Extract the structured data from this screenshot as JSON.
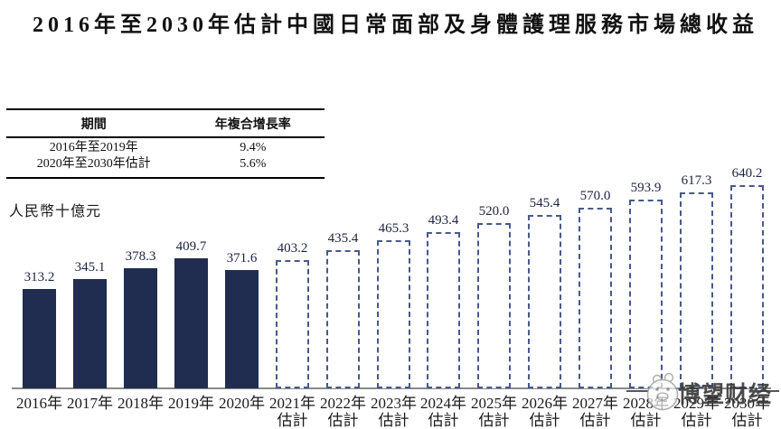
{
  "title": "2016年至2030年估計中國日常面部及身體護理服務市場總收益",
  "cagr_table": {
    "headers": [
      "期間",
      "年複合增長率"
    ],
    "rows": [
      [
        "2016年至2019年",
        "9.4%"
      ],
      [
        "2020年至2030年估計",
        "5.6%"
      ]
    ]
  },
  "watermark": {
    "text": "博望财经",
    "logo": "cat-face-logo"
  },
  "chart_data": {
    "type": "bar",
    "title": "2016年至2030年估計中國日常面部及身體護理服務市場總收益",
    "xlabel": "",
    "ylabel": "人民幣十億元",
    "ylim": [
      0,
      680
    ],
    "grid": false,
    "legend": "none",
    "colors": {
      "actual_fill": "#202c50",
      "estimate_outline": "#47598b",
      "axis_line": "#8a8a8a"
    },
    "bars": [
      {
        "label": "2016年",
        "sublabel": "",
        "value": 313.2,
        "estimated": false
      },
      {
        "label": "2017年",
        "sublabel": "",
        "value": 345.1,
        "estimated": false
      },
      {
        "label": "2018年",
        "sublabel": "",
        "value": 378.3,
        "estimated": false
      },
      {
        "label": "2019年",
        "sublabel": "",
        "value": 409.7,
        "estimated": false
      },
      {
        "label": "2020年",
        "sublabel": "",
        "value": 371.6,
        "estimated": false
      },
      {
        "label": "2021年",
        "sublabel": "估計",
        "value": 403.2,
        "estimated": true
      },
      {
        "label": "2022年",
        "sublabel": "估計",
        "value": 435.4,
        "estimated": true
      },
      {
        "label": "2023年",
        "sublabel": "估計",
        "value": 465.3,
        "estimated": true
      },
      {
        "label": "2024年",
        "sublabel": "估計",
        "value": 493.4,
        "estimated": true
      },
      {
        "label": "2025年",
        "sublabel": "估計",
        "value": 520.0,
        "estimated": true
      },
      {
        "label": "2026年",
        "sublabel": "估計",
        "value": 545.4,
        "estimated": true
      },
      {
        "label": "2027年",
        "sublabel": "估計",
        "value": 570.0,
        "estimated": true
      },
      {
        "label": "2028年",
        "sublabel": "估計",
        "value": 593.9,
        "estimated": true
      },
      {
        "label": "2029年",
        "sublabel": "估計",
        "value": 617.3,
        "estimated": true
      },
      {
        "label": "2030年",
        "sublabel": "估計",
        "value": 640.2,
        "estimated": true
      }
    ],
    "value_format": "one_decimal"
  }
}
